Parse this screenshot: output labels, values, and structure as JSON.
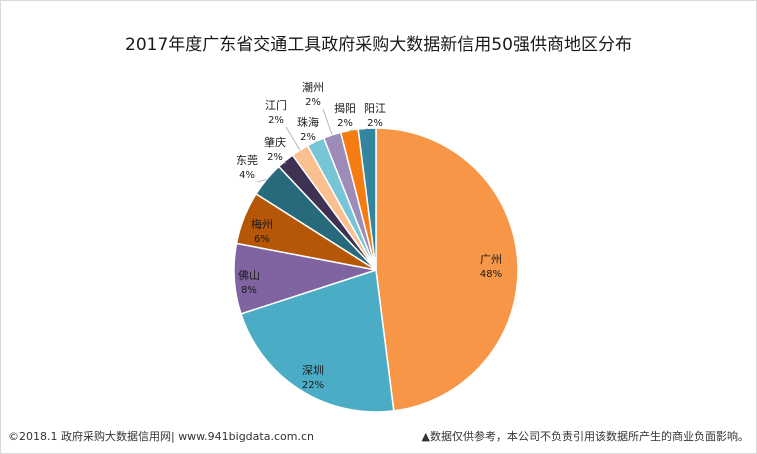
{
  "chart_data": {
    "type": "pie",
    "title": "2017年度广东省交通工具政府采购大数据新信用50强供商地区分布",
    "slices": [
      {
        "label": "广州",
        "value": 48,
        "pct_label": "48%",
        "color": "#f79646"
      },
      {
        "label": "深圳",
        "value": 22,
        "pct_label": "22%",
        "color": "#4bacc6"
      },
      {
        "label": "佛山",
        "value": 8,
        "pct_label": "8%",
        "color": "#8064a2"
      },
      {
        "label": "梅州",
        "value": 6,
        "pct_label": "6%",
        "color": "#b65708"
      },
      {
        "label": "东莞",
        "value": 4,
        "pct_label": "4%",
        "color": "#276a7c"
      },
      {
        "label": "肇庆",
        "value": 2,
        "pct_label": "2%",
        "color": "#3e3151"
      },
      {
        "label": "江门",
        "value": 2,
        "pct_label": "2%",
        "color": "#fac090"
      },
      {
        "label": "珠海",
        "value": 2,
        "pct_label": "2%",
        "color": "#78c5d8"
      },
      {
        "label": "潮州",
        "value": 2,
        "pct_label": "2%",
        "color": "#9d8bb8"
      },
      {
        "label": "揭阳",
        "value": 2,
        "pct_label": "2%",
        "color": "#f57c13"
      },
      {
        "label": "阳江",
        "value": 2,
        "pct_label": "2%",
        "color": "#31859c"
      }
    ],
    "legend": "none"
  },
  "footer": {
    "source": "©2018.1 政府采购大数据信用网| www.941bigdata.com.cn",
    "disclaimer": "▲数据仅供参考，本公司不负责引用该数据所产生的商业负面影响。"
  }
}
